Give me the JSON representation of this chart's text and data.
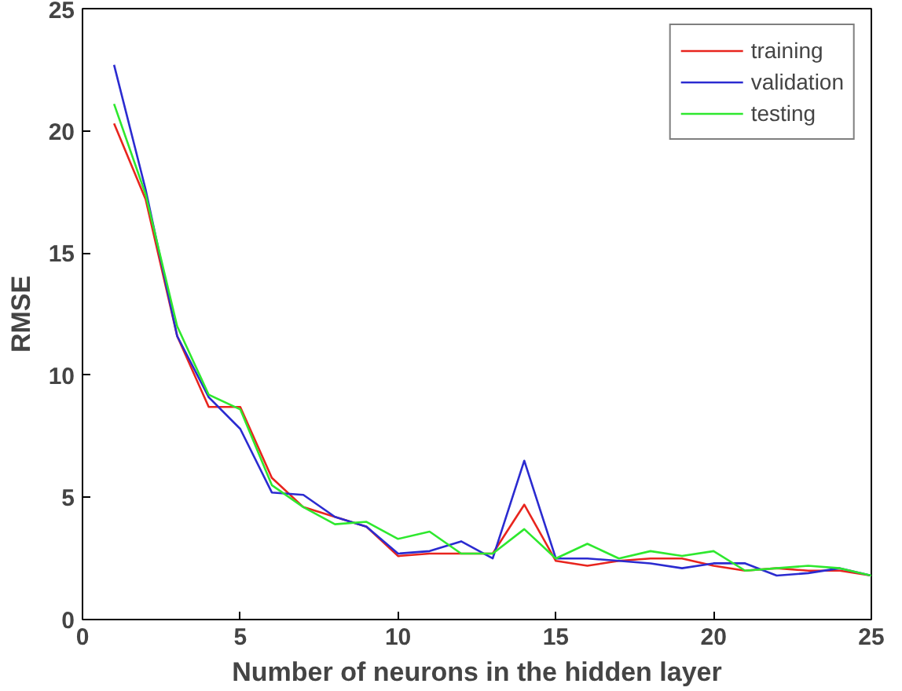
{
  "chart_data": {
    "type": "line",
    "xlabel": "Number of neurons in the hidden layer",
    "ylabel": "RMSE",
    "x": [
      1,
      2,
      3,
      4,
      5,
      6,
      7,
      8,
      9,
      10,
      11,
      12,
      13,
      14,
      15,
      16,
      17,
      18,
      19,
      20,
      21,
      22,
      23,
      24,
      25
    ],
    "series": [
      {
        "name": "training",
        "color": "#e8251e",
        "values": [
          20.3,
          17.2,
          11.6,
          8.7,
          8.7,
          5.8,
          4.6,
          4.2,
          3.8,
          2.6,
          2.7,
          2.7,
          2.7,
          4.7,
          2.4,
          2.2,
          2.4,
          2.5,
          2.5,
          2.2,
          2.0,
          2.1,
          2.0,
          2.0,
          1.8
        ]
      },
      {
        "name": "validation",
        "color": "#2b2bd0",
        "values": [
          22.7,
          17.6,
          11.6,
          9.1,
          7.8,
          5.2,
          5.1,
          4.2,
          3.8,
          2.7,
          2.8,
          3.2,
          2.5,
          6.5,
          2.5,
          2.5,
          2.4,
          2.3,
          2.1,
          2.3,
          2.3,
          1.8,
          1.9,
          2.1,
          1.8
        ]
      },
      {
        "name": "testing",
        "color": "#2ee82e",
        "values": [
          21.1,
          17.4,
          12.0,
          9.2,
          8.6,
          5.5,
          4.6,
          3.9,
          4.0,
          3.3,
          3.6,
          2.7,
          2.7,
          3.7,
          2.5,
          3.1,
          2.5,
          2.8,
          2.6,
          2.8,
          2.0,
          2.1,
          2.2,
          2.1,
          1.8
        ]
      }
    ],
    "xlim": [
      0,
      25
    ],
    "ylim": [
      0,
      25
    ],
    "xticks": [
      0,
      5,
      10,
      15,
      20,
      25
    ],
    "yticks": [
      0,
      5,
      10,
      15,
      20,
      25
    ],
    "grid": false,
    "legend": "top right",
    "line_style": "solid"
  }
}
